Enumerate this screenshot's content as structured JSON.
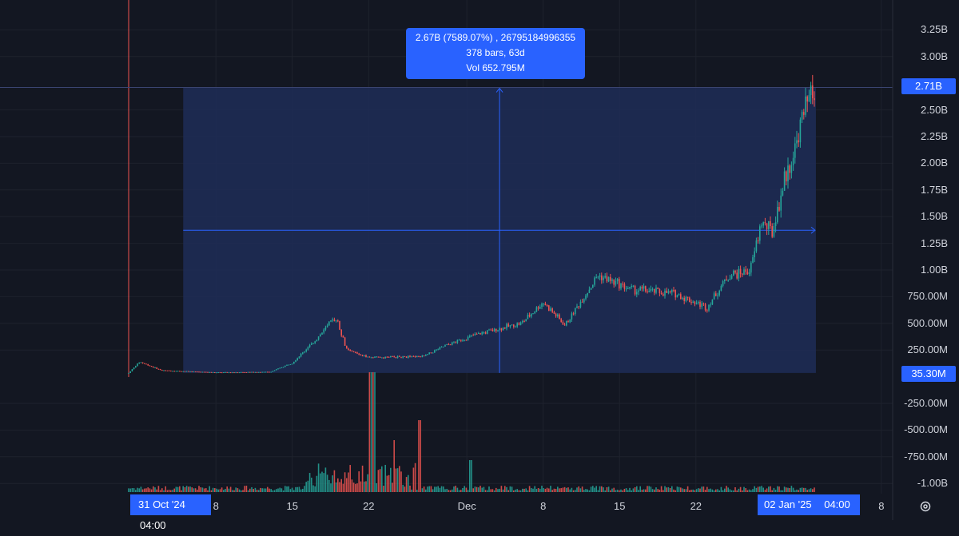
{
  "tooltip": {
    "line1": "2.67B (7589.07%) , 26795184996355",
    "line2": "378 bars, 63d",
    "line3": "Vol 652.795M"
  },
  "colors": {
    "background": "#131722",
    "up": "#26a69a",
    "down": "#ef5350",
    "accent": "#2962ff",
    "range_fill": "#1e2b54",
    "grid": "#1e222d"
  },
  "y_axis_labels": [
    "3.25B",
    "3.00B",
    "2.50B",
    "2.25B",
    "2.00B",
    "1.75B",
    "1.50B",
    "1.25B",
    "1.00B",
    "750.00M",
    "500.00M",
    "250.00M",
    "-250.00M",
    "-500.00M",
    "-750.00M",
    "-1.00B"
  ],
  "y_badges": {
    "top": "2.71B",
    "bottom": "35.30M"
  },
  "x_axis_labels": [
    "8",
    "15",
    "22",
    "Dec",
    "8",
    "15",
    "22",
    "8"
  ],
  "x_badges": {
    "start_date": "31 Oct '24",
    "start_time": "04:00",
    "end_date": "02 Jan '25",
    "end_time": "04:00"
  },
  "settings_icon": "gear-icon",
  "chart_data": {
    "type": "candlestick",
    "y_ticks": [
      3250000000,
      3000000000,
      2500000000,
      2250000000,
      2000000000,
      1750000000,
      1500000000,
      1250000000,
      1000000000,
      750000000,
      500000000,
      250000000,
      -250000000,
      -500000000,
      -750000000,
      -1000000000
    ],
    "x_ticks": [
      "8",
      "15",
      "22",
      "Dec",
      "8",
      "15",
      "22",
      "8"
    ],
    "measure": {
      "start_value": 35300000,
      "end_value": 2710000000,
      "change": "2.67B (7589.07%)",
      "bars": 378,
      "days": 63,
      "volume": "652.795M"
    },
    "price_path": [
      {
        "date": "2024-10-31",
        "close": 35000000
      },
      {
        "date": "2024-11-01",
        "close": 140000000
      },
      {
        "date": "2024-11-03",
        "close": 60000000
      },
      {
        "date": "2024-11-08",
        "close": 40000000
      },
      {
        "date": "2024-11-13",
        "close": 45000000
      },
      {
        "date": "2024-11-15",
        "close": 130000000
      },
      {
        "date": "2024-11-17",
        "close": 330000000
      },
      {
        "date": "2024-11-19",
        "close": 560000000
      },
      {
        "date": "2024-11-20",
        "close": 250000000
      },
      {
        "date": "2024-11-22",
        "close": 180000000
      },
      {
        "date": "2024-11-27",
        "close": 190000000
      },
      {
        "date": "2024-11-29",
        "close": 290000000
      },
      {
        "date": "2024-12-02",
        "close": 400000000
      },
      {
        "date": "2024-12-06",
        "close": 500000000
      },
      {
        "date": "2024-12-08",
        "close": 700000000
      },
      {
        "date": "2024-12-10",
        "close": 480000000
      },
      {
        "date": "2024-12-13",
        "close": 950000000
      },
      {
        "date": "2024-12-16",
        "close": 820000000
      },
      {
        "date": "2024-12-20",
        "close": 780000000
      },
      {
        "date": "2024-12-23",
        "close": 650000000
      },
      {
        "date": "2024-12-25",
        "close": 950000000
      },
      {
        "date": "2024-12-27",
        "close": 1000000000
      },
      {
        "date": "2024-12-28",
        "close": 1450000000
      },
      {
        "date": "2024-12-29",
        "close": 1350000000
      },
      {
        "date": "2024-12-30",
        "close": 1800000000
      },
      {
        "date": "2024-12-31",
        "close": 2100000000
      },
      {
        "date": "2025-01-01",
        "close": 2500000000
      },
      {
        "date": "2025-01-02",
        "close": 2710000000
      }
    ]
  }
}
